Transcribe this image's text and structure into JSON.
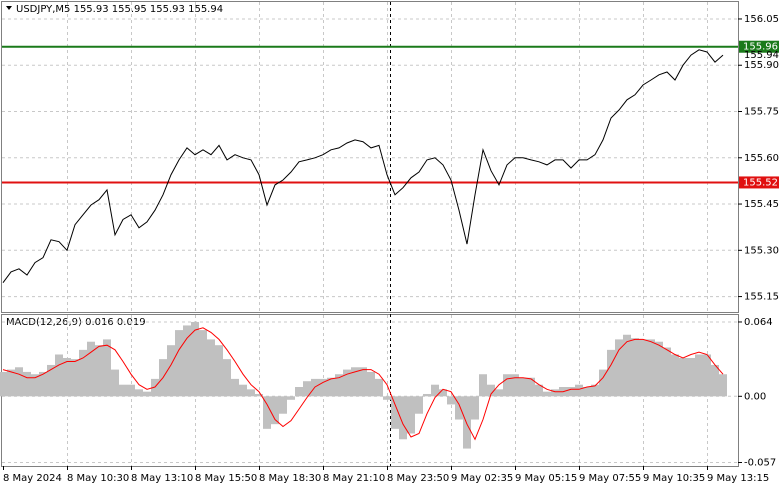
{
  "chart_data": [
    {
      "type": "line",
      "title": "USDJPY,M5  155.93 155.95 155.93 155.94",
      "categories": [
        "8 May 2024",
        null,
        null,
        null,
        null,
        null,
        null,
        null,
        "8 May 10:30",
        null,
        null,
        null,
        null,
        null,
        null,
        null,
        "8 May 13:10",
        null,
        null,
        null,
        null,
        null,
        null,
        null,
        "8 May 15:50",
        null,
        null,
        null,
        null,
        null,
        null,
        null,
        "8 May 18:30",
        null,
        null,
        null,
        null,
        null,
        null,
        null,
        "8 May 21:10",
        null,
        null,
        null,
        null,
        null,
        null,
        null,
        "8 May 23:50",
        null,
        null,
        null,
        null,
        null,
        null,
        null,
        "9 May 02:35",
        null,
        null,
        null,
        null,
        null,
        null,
        null,
        "9 May 05:15",
        null,
        null,
        null,
        null,
        null,
        null,
        null,
        "9 May 07:55",
        null,
        null,
        null,
        null,
        null,
        null,
        null,
        "9 May 10:35",
        null,
        null,
        null,
        null,
        null,
        null,
        null,
        "9 May 13:15",
        null,
        null
      ],
      "values": [
        155.195,
        155.23,
        155.24,
        155.22,
        155.26,
        155.276,
        155.334,
        155.328,
        155.3,
        155.383,
        155.415,
        155.447,
        155.464,
        155.496,
        155.35,
        155.4,
        155.415,
        155.373,
        155.392,
        155.43,
        155.48,
        155.545,
        155.593,
        155.632,
        155.61,
        155.626,
        155.61,
        155.64,
        155.593,
        155.61,
        155.6,
        155.593,
        155.545,
        155.447,
        155.512,
        155.528,
        155.554,
        155.587,
        155.593,
        155.6,
        155.61,
        155.626,
        155.632,
        155.648,
        155.658,
        155.652,
        155.632,
        155.64,
        155.545,
        155.48,
        155.503,
        155.535,
        155.554,
        155.593,
        155.6,
        155.577,
        155.528,
        155.43,
        155.32,
        155.48,
        155.626,
        155.558,
        155.512,
        155.577,
        155.6,
        155.6,
        155.593,
        155.587,
        155.577,
        155.593,
        155.593,
        155.567,
        155.593,
        155.593,
        155.61,
        155.658,
        155.729,
        155.755,
        155.788,
        155.804,
        155.836,
        155.852,
        155.869,
        155.878,
        155.852,
        155.9,
        155.933,
        155.95,
        155.943,
        155.91,
        155.933
      ],
      "color": "#000000",
      "ylim": [
        155.1,
        156.105
      ],
      "yticks": [
        156.05,
        {
          "value": 155.9,
          "label": "155.90"
        },
        155.75,
        {
          "value": 155.6,
          "label": "155.60"
        },
        155.45,
        {
          "value": 155.3,
          "label": "155.30"
        },
        155.15
      ],
      "grid": true,
      "levels": [
        {
          "value": 155.96,
          "color": "#1a7a1a"
        },
        {
          "value": 155.52,
          "color": "#e01010"
        }
      ],
      "last_price": 155.94
    },
    {
      "type": "macd",
      "title": "MACD(12,26,9) 0.016 0.019",
      "series": [
        {
          "kind": "bar",
          "color": "#c0c0c0",
          "values": [
            0.021,
            0.023,
            0.025,
            0.021,
            0.019,
            0.021,
            0.027,
            0.036,
            0.033,
            0.032,
            0.04,
            0.047,
            0.044,
            0.049,
            0.023,
            0.01,
            0.01,
            0.006,
            0.004,
            0.015,
            0.032,
            0.044,
            0.057,
            0.061,
            0.064,
            0.057,
            0.049,
            0.044,
            0.032,
            0.015,
            0.01,
            0.006,
            0.002,
            -0.028,
            -0.024,
            -0.015,
            -0.003,
            0.008,
            0.013,
            0.015,
            0.015,
            0.016,
            0.019,
            0.023,
            0.025,
            0.025,
            0.021,
            0.015,
            -0.003,
            -0.028,
            -0.037,
            -0.032,
            -0.015,
            0.002,
            0.01,
            0.006,
            -0.007,
            -0.02,
            -0.045,
            -0.02,
            0.019,
            0.01,
            0.006,
            0.019,
            0.019,
            0.016,
            0.016,
            0.01,
            0.004,
            0.006,
            0.008,
            0.008,
            0.01,
            0.008,
            0.01,
            0.023,
            0.04,
            0.049,
            0.053,
            0.05,
            0.049,
            0.049,
            0.047,
            0.042,
            0.036,
            0.033,
            0.033,
            0.036,
            0.036,
            0.027,
            0.019
          ]
        },
        {
          "kind": "line",
          "color": "#ff0000",
          "values": [
            0.023,
            0.021,
            0.019,
            0.016,
            0.016,
            0.019,
            0.023,
            0.027,
            0.03,
            0.03,
            0.033,
            0.038,
            0.043,
            0.044,
            0.04,
            0.03,
            0.019,
            0.01,
            0.006,
            0.008,
            0.016,
            0.027,
            0.04,
            0.05,
            0.057,
            0.059,
            0.055,
            0.049,
            0.04,
            0.03,
            0.019,
            0.01,
            0.004,
            -0.007,
            -0.02,
            -0.026,
            -0.021,
            -0.011,
            -0.001,
            0.008,
            0.012,
            0.015,
            0.016,
            0.019,
            0.021,
            0.023,
            0.023,
            0.019,
            0.01,
            -0.007,
            -0.024,
            -0.035,
            -0.032,
            -0.015,
            -0.001,
            0.006,
            0.004,
            -0.007,
            -0.024,
            -0.037,
            -0.02,
            0.002,
            0.01,
            0.015,
            0.016,
            0.016,
            0.015,
            0.01,
            0.006,
            0.004,
            0.004,
            0.006,
            0.006,
            0.008,
            0.009,
            0.016,
            0.027,
            0.04,
            0.047,
            0.049,
            0.049,
            0.047,
            0.044,
            0.04,
            0.036,
            0.033,
            0.036,
            0.038,
            0.036,
            0.027,
            0.019
          ]
        }
      ],
      "ylim": [
        -0.06,
        0.07
      ],
      "yticks": [
        0.064,
        {
          "value": 0,
          "label": "0.00"
        },
        -0.057
      ],
      "grid": true
    }
  ]
}
